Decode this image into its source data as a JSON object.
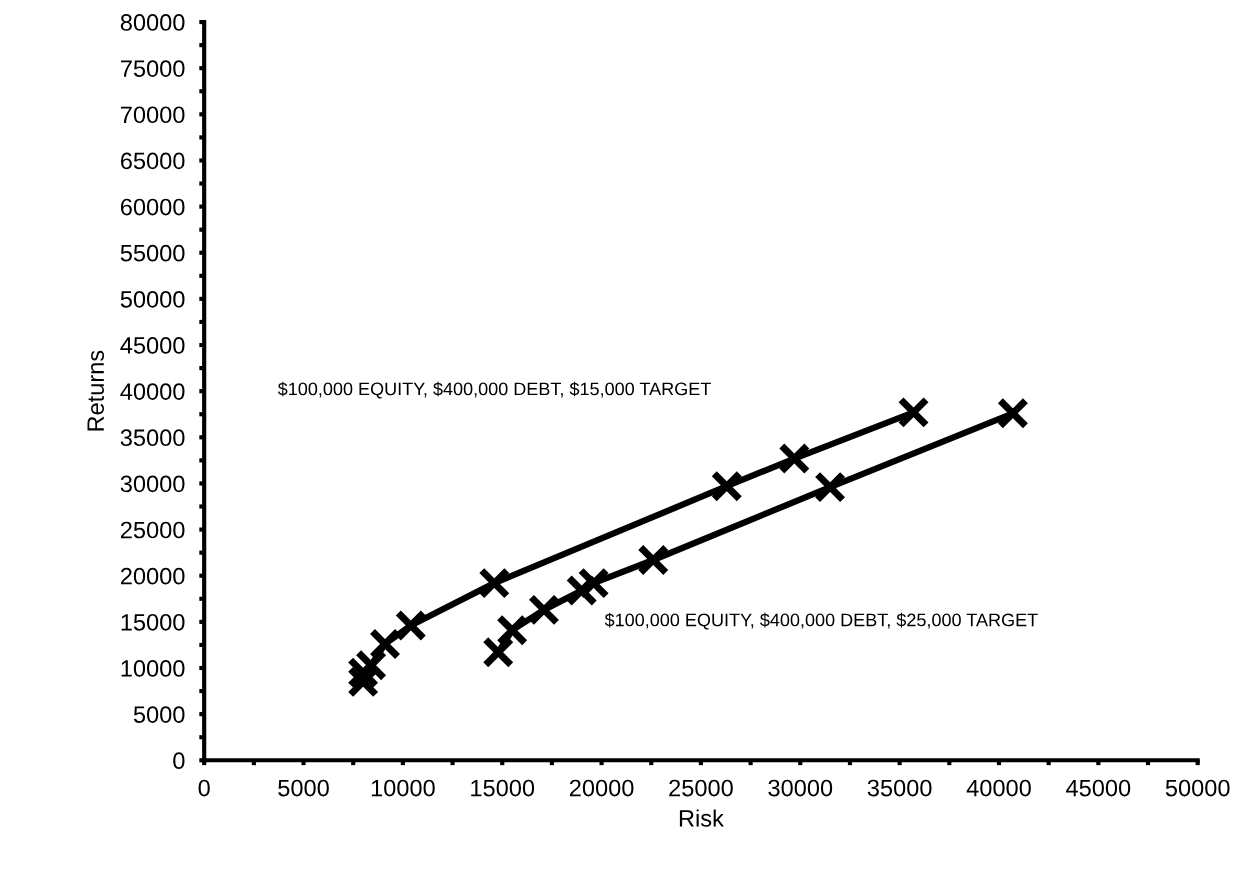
{
  "chart_data": {
    "type": "line",
    "xlabel": "Risk",
    "ylabel": "Returns",
    "marker": "cross",
    "line_style": "solid",
    "grid": false,
    "legend": false,
    "xlim": [
      0,
      50000
    ],
    "ylim": [
      0,
      80000
    ],
    "xticks": [
      0,
      {
        "value": 2500,
        "label": null
      },
      5000,
      {
        "value": 7500,
        "label": null
      },
      10000,
      {
        "value": 12500,
        "label": null
      },
      15000,
      {
        "value": 17500,
        "label": null
      },
      20000,
      {
        "value": 22500,
        "label": null
      },
      25000,
      {
        "value": 27500,
        "label": null
      },
      30000,
      {
        "value": 32500,
        "label": null
      },
      35000,
      {
        "value": 37500,
        "label": null
      },
      40000,
      {
        "value": 42500,
        "label": null
      },
      45000,
      {
        "value": 47500,
        "label": null
      },
      50000
    ],
    "yticks": [
      0,
      {
        "value": 2500,
        "label": null
      },
      5000,
      {
        "value": 7500,
        "label": null
      },
      10000,
      {
        "value": 12500,
        "label": null
      },
      15000,
      {
        "value": 17500,
        "label": null
      },
      20000,
      {
        "value": 22500,
        "label": null
      },
      25000,
      {
        "value": 27500,
        "label": null
      },
      30000,
      {
        "value": 32500,
        "label": null
      },
      35000,
      {
        "value": 37500,
        "label": null
      },
      40000,
      {
        "value": 42500,
        "label": null
      },
      45000,
      {
        "value": 47500,
        "label": null
      },
      50000,
      {
        "value": 52500,
        "label": null
      },
      55000,
      {
        "value": 57500,
        "label": null
      },
      60000,
      {
        "value": 62500,
        "label": null
      },
      65000,
      {
        "value": 67500,
        "label": null
      },
      70000,
      {
        "value": 72500,
        "label": null
      },
      75000,
      {
        "value": 77500,
        "label": null
      },
      80000
    ],
    "annotations": [
      "$100,000 EQUITY, $400,000 DEBT, $15,000 TARGET",
      "$100,000 EQUITY, $400,000 DEBT, $25,000 TARGET"
    ],
    "series": [
      {
        "color": "#000000",
        "x": [
          8000,
          8000,
          8400,
          9100,
          10400,
          14600,
          26300,
          29700,
          35700
        ],
        "values": [
          8500,
          9500,
          10300,
          12600,
          14600,
          19200,
          29700,
          32700,
          37700
        ]
      },
      {
        "color": "#000000",
        "x": [
          14800,
          15500,
          17100,
          19000,
          19600,
          22600,
          31500,
          40700
        ],
        "values": [
          11700,
          14100,
          16300,
          18400,
          19200,
          21700,
          29600,
          37600
        ]
      }
    ]
  }
}
